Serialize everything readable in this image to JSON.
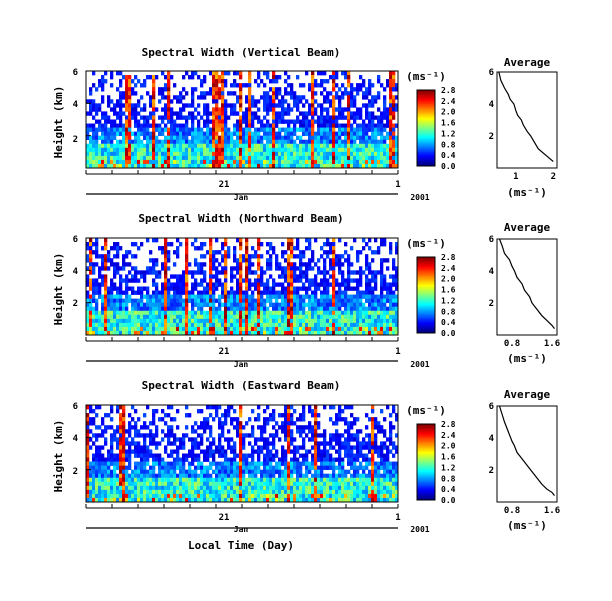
{
  "chart_data": [
    {
      "type": "heatmap",
      "title": "Spectral Width (Vertical Beam)",
      "ylabel": "Height (km)",
      "ylim": [
        0,
        6
      ],
      "yticks": [
        "2",
        "4",
        "6"
      ],
      "xticks": [
        "21",
        "1"
      ],
      "xsub": [
        "Jan",
        "2001"
      ],
      "colorbar_unit": "(ms⁻¹)",
      "colorbar_ticks": [
        "0.0",
        "0.4",
        "0.8",
        "1.2",
        "1.6",
        "2.0",
        "2.4",
        "2.8"
      ],
      "colorbar_range": [
        0,
        2.8
      ],
      "profile": {
        "title": "Average",
        "xlabel": "(ms⁻¹)",
        "xticks": [
          "1",
          "2"
        ],
        "xlim": [
          0.5,
          2.1
        ],
        "ylim": [
          0,
          6
        ],
        "yticks": [
          "2",
          "4",
          "6"
        ],
        "x": [
          0.55,
          0.6,
          0.7,
          0.8,
          0.85,
          0.95,
          1.0,
          1.05,
          1.15,
          1.2,
          1.3,
          1.4,
          1.5,
          1.6,
          1.8,
          2.0
        ],
        "y": [
          6.0,
          5.5,
          5.0,
          4.6,
          4.3,
          4.0,
          3.6,
          3.3,
          3.0,
          2.7,
          2.3,
          2.0,
          1.6,
          1.2,
          0.8,
          0.4
        ]
      }
    },
    {
      "type": "heatmap",
      "title": "Spectral Width (Northward Beam)",
      "ylabel": "Height (km)",
      "ylim": [
        0,
        6
      ],
      "yticks": [
        "2",
        "4",
        "6"
      ],
      "xticks": [
        "21",
        "1"
      ],
      "xsub": [
        "Jan",
        "2001"
      ],
      "colorbar_unit": "(ms⁻¹)",
      "colorbar_ticks": [
        "0.0",
        "0.4",
        "0.8",
        "1.2",
        "1.6",
        "2.0",
        "2.4",
        "2.8"
      ],
      "colorbar_range": [
        0,
        2.8
      ],
      "profile": {
        "title": "Average",
        "xlabel": "(ms⁻¹)",
        "xticks": [
          "0.8",
          "1.6"
        ],
        "xlim": [
          0.5,
          1.7
        ],
        "ylim": [
          0,
          6
        ],
        "yticks": [
          "2",
          "4",
          "6"
        ],
        "x": [
          0.55,
          0.6,
          0.65,
          0.75,
          0.8,
          0.85,
          0.9,
          1.0,
          1.05,
          1.15,
          1.2,
          1.3,
          1.4,
          1.5,
          1.6,
          1.65
        ],
        "y": [
          6.0,
          5.6,
          5.1,
          4.7,
          4.3,
          4.0,
          3.6,
          3.2,
          2.8,
          2.4,
          2.0,
          1.6,
          1.2,
          0.9,
          0.6,
          0.4
        ]
      }
    },
    {
      "type": "heatmap",
      "title": "Spectral Width (Eastward Beam)",
      "ylabel": "Height (km)",
      "ylim": [
        0,
        6
      ],
      "yticks": [
        "2",
        "4",
        "6"
      ],
      "xticks": [
        "21",
        "1"
      ],
      "xsub": [
        "Jan",
        "2001"
      ],
      "xlabel": "Local Time (Day)",
      "colorbar_unit": "(ms⁻¹)",
      "colorbar_ticks": [
        "0.0",
        "0.4",
        "0.8",
        "1.2",
        "1.6",
        "2.0",
        "2.4",
        "2.8"
      ],
      "colorbar_range": [
        0,
        2.8
      ],
      "profile": {
        "title": "Average",
        "xlabel": "(ms⁻¹)",
        "xticks": [
          "0.8",
          "1.6"
        ],
        "xlim": [
          0.5,
          1.7
        ],
        "ylim": [
          0,
          6
        ],
        "yticks": [
          "2",
          "4",
          "6"
        ],
        "x": [
          0.55,
          0.6,
          0.65,
          0.7,
          0.75,
          0.8,
          0.85,
          0.9,
          1.0,
          1.1,
          1.2,
          1.3,
          1.4,
          1.5,
          1.6,
          1.65
        ],
        "y": [
          6.0,
          5.5,
          5.0,
          4.6,
          4.2,
          3.8,
          3.5,
          3.1,
          2.7,
          2.3,
          1.9,
          1.5,
          1.1,
          0.8,
          0.6,
          0.4
        ]
      }
    }
  ]
}
